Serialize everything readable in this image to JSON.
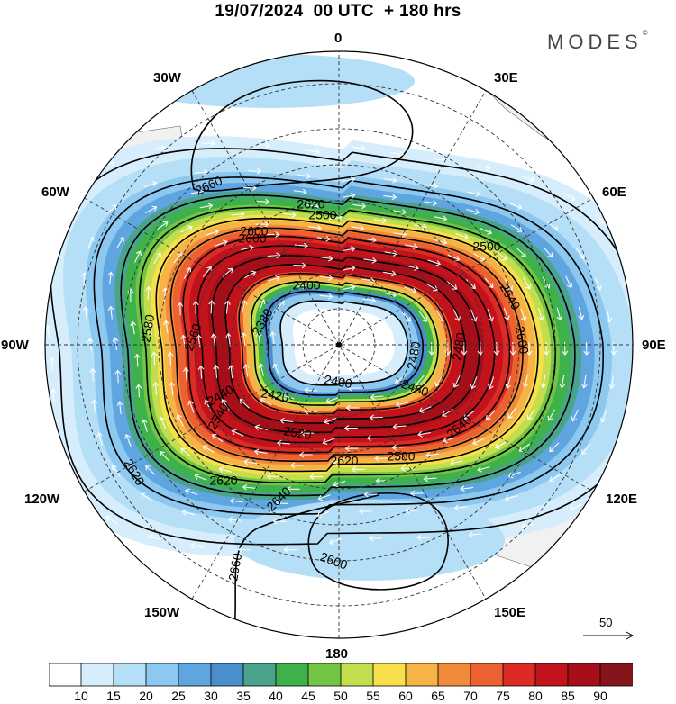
{
  "title": "19/07/2024  00 UTC  + 180 hrs",
  "brand": "MODES",
  "brand_mark": "©",
  "longitude_labels": {
    "top": "0",
    "bottom": "180",
    "left": "90W",
    "right": "90E",
    "w30": "30W",
    "e30": "30E",
    "w60": "60W",
    "e60": "60E",
    "w120": "120W",
    "e120": "120E",
    "w150": "150W",
    "e150": "150E"
  },
  "contour_labels": [
    "2660",
    "2620",
    "2600",
    "2580",
    "2560",
    "2540",
    "2520",
    "2500",
    "2480",
    "2460",
    "2440",
    "2420",
    "2400",
    "2380",
    "2640",
    "2620",
    "2640",
    "2660",
    "2600",
    "2620",
    "2620",
    "2580",
    "2640",
    "2600",
    "2480",
    "2500",
    "2400",
    "2600"
  ],
  "reference_vector": "50",
  "colorbar": {
    "labels": [
      "10",
      "15",
      "20",
      "25",
      "30",
      "35",
      "40",
      "45",
      "50",
      "55",
      "60",
      "65",
      "70",
      "75",
      "80",
      "85",
      "90"
    ],
    "colors": [
      "#ffffff",
      "#d6eefb",
      "#b4dff7",
      "#8cc8ef",
      "#5fa6e0",
      "#4a8fcb",
      "#4aa38a",
      "#3fb14b",
      "#73c545",
      "#c3de4d",
      "#f7e04b",
      "#f6b447",
      "#f18b3a",
      "#ec6130",
      "#dc2b24",
      "#c2131d",
      "#a50f1a",
      "#86151b"
    ]
  },
  "wind_levels": [
    90,
    75,
    60,
    45,
    30,
    20,
    15
  ]
}
